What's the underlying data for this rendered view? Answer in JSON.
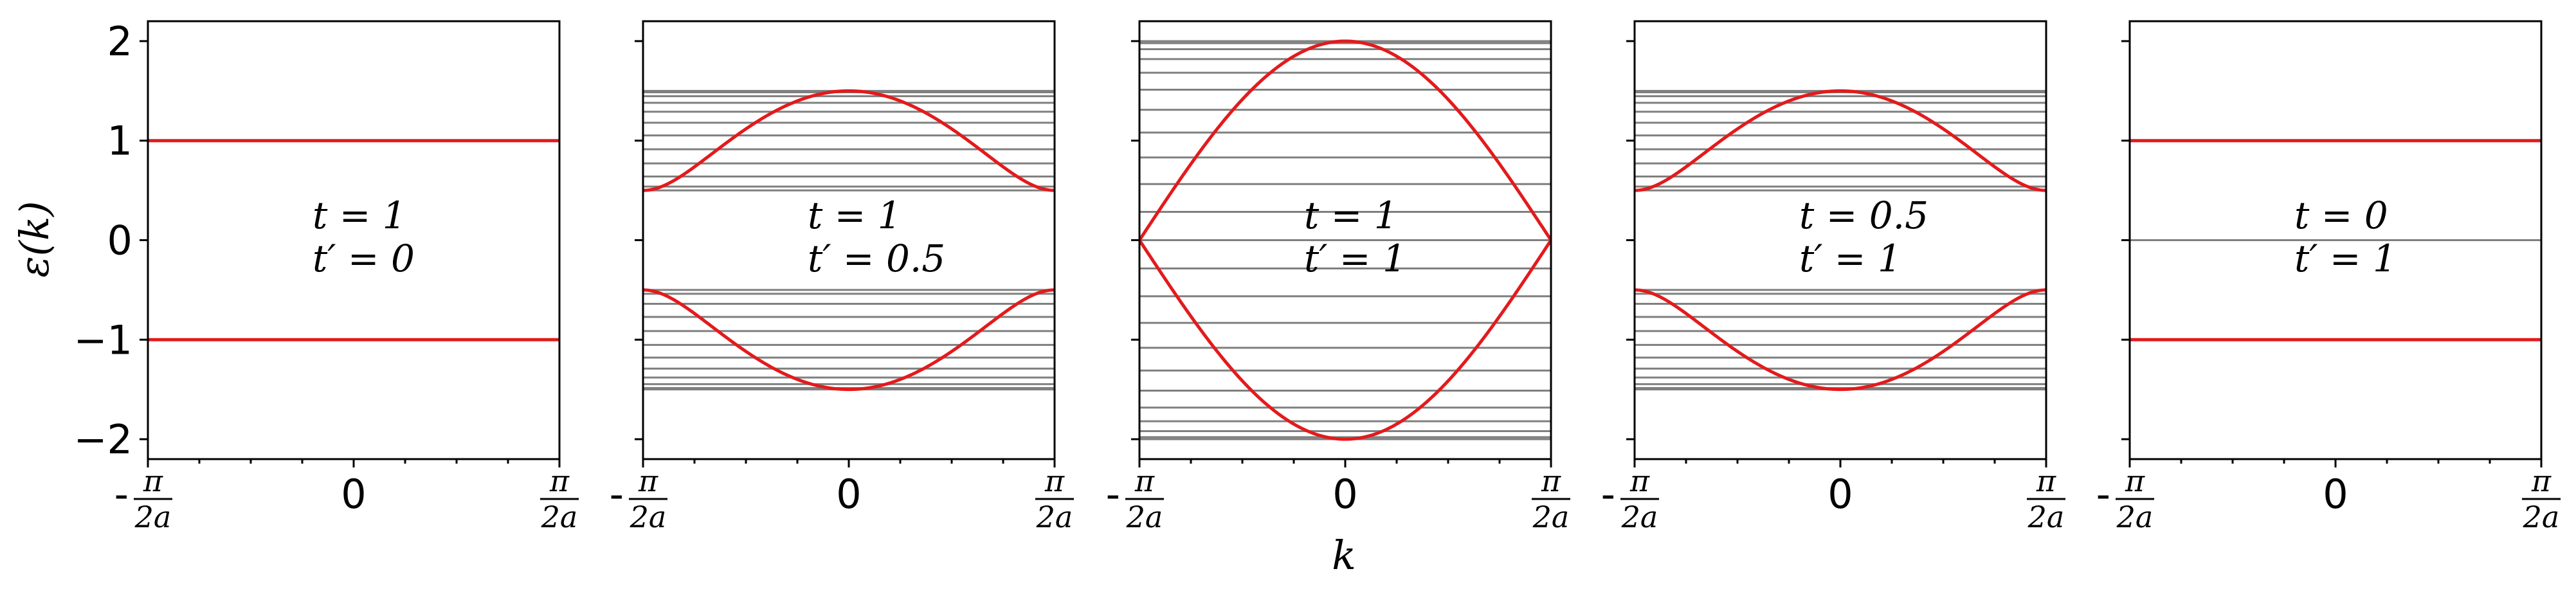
{
  "chart_data": {
    "type": "line",
    "ylabel": "ε(k)",
    "xlabel": "k",
    "ylim": [
      -2.2,
      2.2
    ],
    "xlim": [
      -1,
      1
    ],
    "y_ticks": [
      -2,
      -1,
      0,
      1,
      2
    ],
    "y_tick_labels": [
      "−2",
      "−1",
      "0",
      "1",
      "2"
    ],
    "x_tick_labels": {
      "left_minus": "-",
      "left_num": "π",
      "left_den": "2a",
      "center": "0",
      "right_num": "π",
      "right_den": "2a"
    },
    "grid": false,
    "colors": {
      "band": "#e31a1c",
      "level": "#7f7f7f",
      "axis": "#000000"
    },
    "panels": [
      {
        "t_label": "t = 1",
        "tp_label": "t′ = 0",
        "t": 1,
        "tp": 0,
        "band_formula": "±sqrt(t^2 + t'^2 + 2 t t' cos(k))",
        "levels_per_band": 1
      },
      {
        "t_label": "t = 1",
        "tp_label": "t′ = 0.5",
        "t": 1,
        "tp": 0.5,
        "band_formula": "±sqrt(t^2 + t'^2 + 2 t t' cos(k))",
        "levels_per_band": 12
      },
      {
        "t_label": "t = 1",
        "tp_label": "t′ = 1",
        "t": 1,
        "tp": 1,
        "band_formula": "±sqrt(t^2 + t'^2 + 2 t t' cos(k))",
        "levels_per_band": 12
      },
      {
        "t_label": "t = 0.5",
        "tp_label": "t′ = 1",
        "t": 0.5,
        "tp": 1,
        "band_formula": "±sqrt(t^2 + t'^2 + 2 t t' cos(k))",
        "levels_per_band": 12
      },
      {
        "t_label": "t = 0",
        "tp_label": "t′ = 1",
        "t": 0,
        "tp": 1,
        "band_formula": "±sqrt(t^2 + t'^2 + 2 t t' cos(k))",
        "levels_per_band": 1
      }
    ]
  }
}
